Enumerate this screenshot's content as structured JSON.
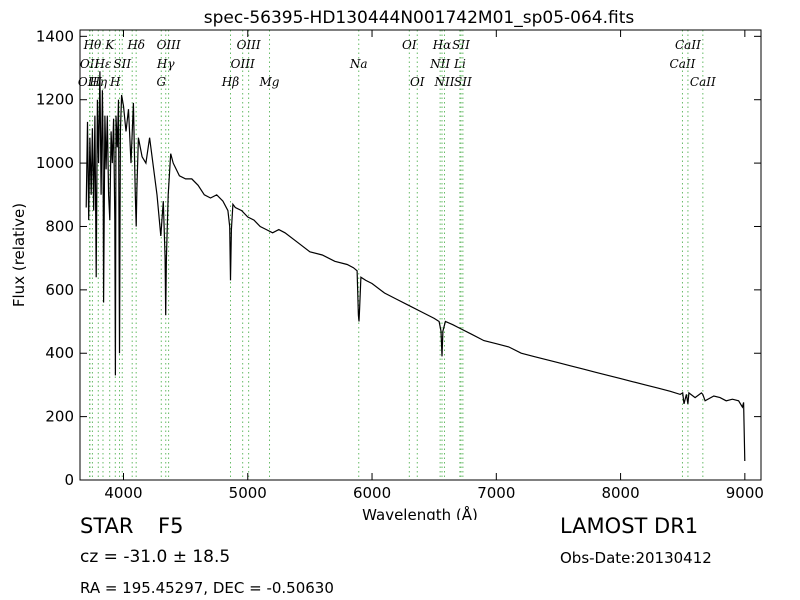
{
  "chart_data": {
    "type": "line",
    "title": "spec-56395-HD130444N001742M01_sp05-064.fits",
    "xlabel": "Wavelength (Å)",
    "ylabel": "Flux (relative)",
    "xlim": [
      3650,
      9130
    ],
    "ylim": [
      0,
      1420
    ],
    "xticks": [
      4000,
      5000,
      6000,
      7000,
      8000,
      9000
    ],
    "yticks": [
      0,
      200,
      400,
      600,
      800,
      1000,
      1200,
      1400
    ],
    "grid": false,
    "line_color": "#000000",
    "marker_color": "#66bb66",
    "series": [
      {
        "x": [
          3700,
          3710,
          3720,
          3730,
          3740,
          3750,
          3760,
          3770,
          3780,
          3790,
          3800,
          3810,
          3820,
          3830,
          3835,
          3840,
          3850,
          3860,
          3870,
          3880,
          3890,
          3900,
          3910,
          3920,
          3930,
          3935,
          3940,
          3950,
          3960,
          3968,
          3975,
          3985,
          4000,
          4020,
          4040,
          4060,
          4080,
          4095,
          4102,
          4108,
          4120,
          4150,
          4180,
          4210,
          4240,
          4270,
          4300,
          4320,
          4335,
          4340,
          4345,
          4360,
          4380,
          4400,
          4450,
          4500,
          4550,
          4600,
          4650,
          4700,
          4750,
          4800,
          4840,
          4855,
          4861,
          4868,
          4880,
          4900,
          4950,
          5000,
          5050,
          5100,
          5150,
          5200,
          5250,
          5300,
          5400,
          5500,
          5600,
          5700,
          5800,
          5850,
          5880,
          5890,
          5895,
          5900,
          5910,
          5950,
          6000,
          6100,
          6200,
          6300,
          6400,
          6500,
          6540,
          6555,
          6563,
          6570,
          6590,
          6650,
          6700,
          6800,
          6900,
          7000,
          7100,
          7200,
          7300,
          7400,
          7500,
          7600,
          7700,
          7800,
          7900,
          8000,
          8100,
          8200,
          8300,
          8400,
          8480,
          8500,
          8510,
          8530,
          8542,
          8550,
          8600,
          8650,
          8662,
          8680,
          8750,
          8800,
          8850,
          8900,
          8950,
          8980,
          8990,
          9000
        ],
        "y": [
          860,
          1130,
          820,
          1080,
          900,
          1110,
          850,
          1150,
          640,
          1200,
          1000,
          1290,
          900,
          1230,
          1080,
          560,
          1150,
          980,
          1150,
          900,
          820,
          1100,
          1000,
          1140,
          820,
          330,
          1150,
          1050,
          1200,
          400,
          1100,
          1215,
          1180,
          1100,
          1170,
          1000,
          1190,
          900,
          800,
          920,
          1080,
          1020,
          1000,
          1080,
          990,
          900,
          770,
          880,
          700,
          520,
          700,
          900,
          1030,
          1000,
          960,
          950,
          950,
          930,
          900,
          890,
          900,
          880,
          850,
          800,
          630,
          790,
          870,
          860,
          850,
          830,
          820,
          800,
          790,
          780,
          790,
          780,
          750,
          720,
          710,
          690,
          680,
          670,
          660,
          520,
          500,
          540,
          640,
          630,
          620,
          590,
          570,
          550,
          530,
          510,
          500,
          470,
          390,
          470,
          500,
          490,
          480,
          460,
          440,
          430,
          420,
          400,
          390,
          380,
          370,
          360,
          350,
          340,
          330,
          320,
          310,
          300,
          290,
          280,
          270,
          275,
          240,
          270,
          240,
          275,
          260,
          275,
          270,
          250,
          265,
          260,
          250,
          255,
          250,
          230,
          245,
          60
        ]
      }
    ],
    "lines": [
      {
        "x": 3727,
        "label": "OII",
        "row": 1
      },
      {
        "x": 3750,
        "label": "Hθ",
        "row": 0
      },
      {
        "x": 3730,
        "label": "OIII",
        "row": 2
      },
      {
        "x": 3797,
        "label": "Hη",
        "row": 2
      },
      {
        "x": 3835,
        "label": "Hε",
        "row": 1
      },
      {
        "x": 3889,
        "label": "K",
        "row": 0
      },
      {
        "x": 3934,
        "label": "H",
        "row": 2
      },
      {
        "x": 3968,
        "label": "",
        "row": 2
      },
      {
        "x": 3990,
        "label": "SII",
        "row": 1
      },
      {
        "x": 4070,
        "label": "",
        "row": 1
      },
      {
        "x": 4102,
        "label": "Hδ",
        "row": 0
      },
      {
        "x": 4304,
        "label": "G",
        "row": 3
      },
      {
        "x": 4340,
        "label": "Hγ",
        "row": 1
      },
      {
        "x": 4363,
        "label": "OIII",
        "row": 0
      },
      {
        "x": 4861,
        "label": "Hβ",
        "row": 2
      },
      {
        "x": 4959,
        "label": "OIII",
        "row": 1
      },
      {
        "x": 5007,
        "label": "OIII",
        "row": 0
      },
      {
        "x": 5175,
        "label": "Mg",
        "row": 2
      },
      {
        "x": 5893,
        "label": "Na",
        "row": 1
      },
      {
        "x": 6300,
        "label": "OI",
        "row": 0
      },
      {
        "x": 6364,
        "label": "OI",
        "row": 2
      },
      {
        "x": 6548,
        "label": "NII",
        "row": 1
      },
      {
        "x": 6563,
        "label": "Hα",
        "row": 0
      },
      {
        "x": 6583,
        "label": "NII",
        "row": 2
      },
      {
        "x": 6707,
        "label": "Li",
        "row": 1
      },
      {
        "x": 6716,
        "label": "SII",
        "row": 0
      },
      {
        "x": 6731,
        "label": "SII",
        "row": 2
      },
      {
        "x": 8498,
        "label": "CaII",
        "row": 1
      },
      {
        "x": 8542,
        "label": "CaII",
        "row": 0
      },
      {
        "x": 8662,
        "label": "CaII",
        "row": 2
      }
    ]
  },
  "info": {
    "class_label": "STAR",
    "subclass_label": "F5",
    "redshift": "cz = -31.0 ± 18.5",
    "coordinates": "RA = 195.45297, DEC = -0.50630",
    "survey": "LAMOST DR1",
    "obs_date": "Obs-Date:20130412"
  }
}
